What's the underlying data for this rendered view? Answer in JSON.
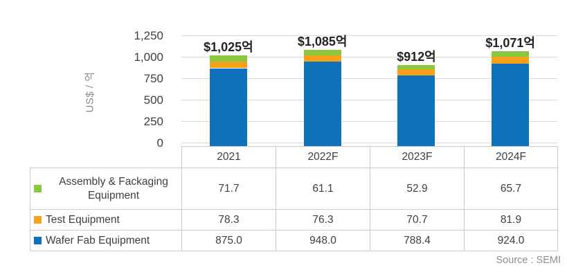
{
  "chart": {
    "y_axis_title": "US$ / 억",
    "y_ticks": [
      {
        "label": "1,250",
        "value": 1250
      },
      {
        "label": "1,000",
        "value": 1000
      },
      {
        "label": "750",
        "value": 750
      },
      {
        "label": "500",
        "value": 500
      },
      {
        "label": "250",
        "value": 250
      },
      {
        "label": "0",
        "value": 0
      }
    ],
    "colors": {
      "wafer_fab": "#0e72ba",
      "test": "#f7a11a",
      "assembly": "#8dc63f",
      "gridline": "#d9d9d9",
      "table_border": "#c9c9c9"
    }
  },
  "chart_data": {
    "type": "bar",
    "stacked": true,
    "categories": [
      "2021",
      "2022F",
      "2023F",
      "2024F"
    ],
    "series": [
      {
        "key": "assembly",
        "name": "Assembly & Fackaging Equipment",
        "color": "#8dc63f",
        "values": [
          71.7,
          61.1,
          52.9,
          65.7
        ]
      },
      {
        "key": "test",
        "name": "Test Equipment",
        "color": "#f7a11a",
        "values": [
          78.3,
          76.3,
          70.7,
          81.9
        ]
      },
      {
        "key": "wafer-fab",
        "name": "Wafer Fab Equipment",
        "color": "#0e72ba",
        "values": [
          875.0,
          948.0,
          788.4,
          924.0
        ]
      }
    ],
    "total_labels": [
      "$1,025억",
      "$1,085억",
      "$912억",
      "$1,071억"
    ],
    "ylabel": "US$ / 억",
    "ylim": [
      0,
      1250
    ],
    "y_tick_step": 250,
    "grid": "horizontal",
    "legend_position": "table-left-column"
  },
  "table": {
    "columns": [
      "2021",
      "2022F",
      "2023F",
      "2024F"
    ],
    "rows": [
      {
        "label": "Assembly & Fackaging Equipment",
        "legend_color": "#8dc63f",
        "values": [
          "71.7",
          "61.1",
          "52.9",
          "65.7"
        ]
      },
      {
        "label": "Test Equipment",
        "legend_color": "#f7a11a",
        "values": [
          "78.3",
          "76.3",
          "70.7",
          "81.9"
        ]
      },
      {
        "label": "Wafer Fab Equipment",
        "legend_color": "#0e72ba",
        "values": [
          "875.0",
          "948.0",
          "788.4",
          "924.0"
        ]
      }
    ],
    "source": "Source : SEMI"
  }
}
